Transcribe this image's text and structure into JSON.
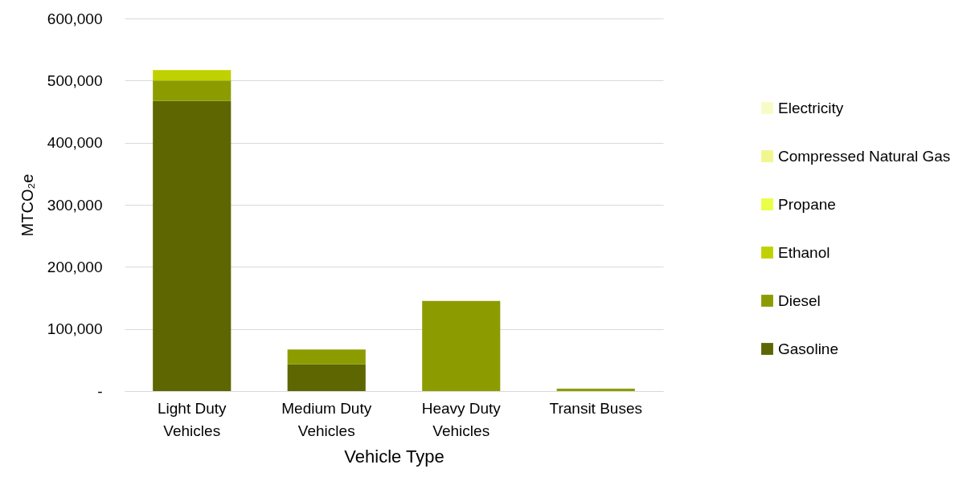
{
  "chart_data": {
    "type": "bar",
    "stacked": true,
    "xlabel": "Vehicle Type",
    "ylabel": "MTCO₂e",
    "categories": [
      "Light Duty Vehicles",
      "Medium Duty Vehicles",
      "Heavy Duty Vehicles",
      "Transit Buses"
    ],
    "series": [
      {
        "name": "Gasoline",
        "color": "#5d6600",
        "values": [
          467000,
          43000,
          0,
          0
        ]
      },
      {
        "name": "Diesel",
        "color": "#8c9c00",
        "values": [
          33000,
          24000,
          145000,
          4000
        ]
      },
      {
        "name": "Ethanol",
        "color": "#bfd100",
        "values": [
          17000,
          0,
          0,
          0
        ]
      },
      {
        "name": "Propane",
        "color": "#eaff45",
        "values": [
          0,
          0,
          0,
          0
        ]
      },
      {
        "name": "Compressed Natural Gas",
        "color": "#f2f68f",
        "values": [
          0,
          0,
          0,
          0
        ]
      },
      {
        "name": "Electricity",
        "color": "#f7fcc6",
        "values": [
          0,
          0,
          0,
          0
        ]
      }
    ],
    "ylim": [
      0,
      600000
    ],
    "yticks": [
      {
        "value": 0,
        "label": "-"
      },
      {
        "value": 100000,
        "label": "100,000"
      },
      {
        "value": 200000,
        "label": "200,000"
      },
      {
        "value": 300000,
        "label": "300,000"
      },
      {
        "value": 400000,
        "label": "400,000"
      },
      {
        "value": 500000,
        "label": "500,000"
      },
      {
        "value": 600000,
        "label": "600,000"
      }
    ],
    "grid": "y",
    "legend": "right"
  }
}
